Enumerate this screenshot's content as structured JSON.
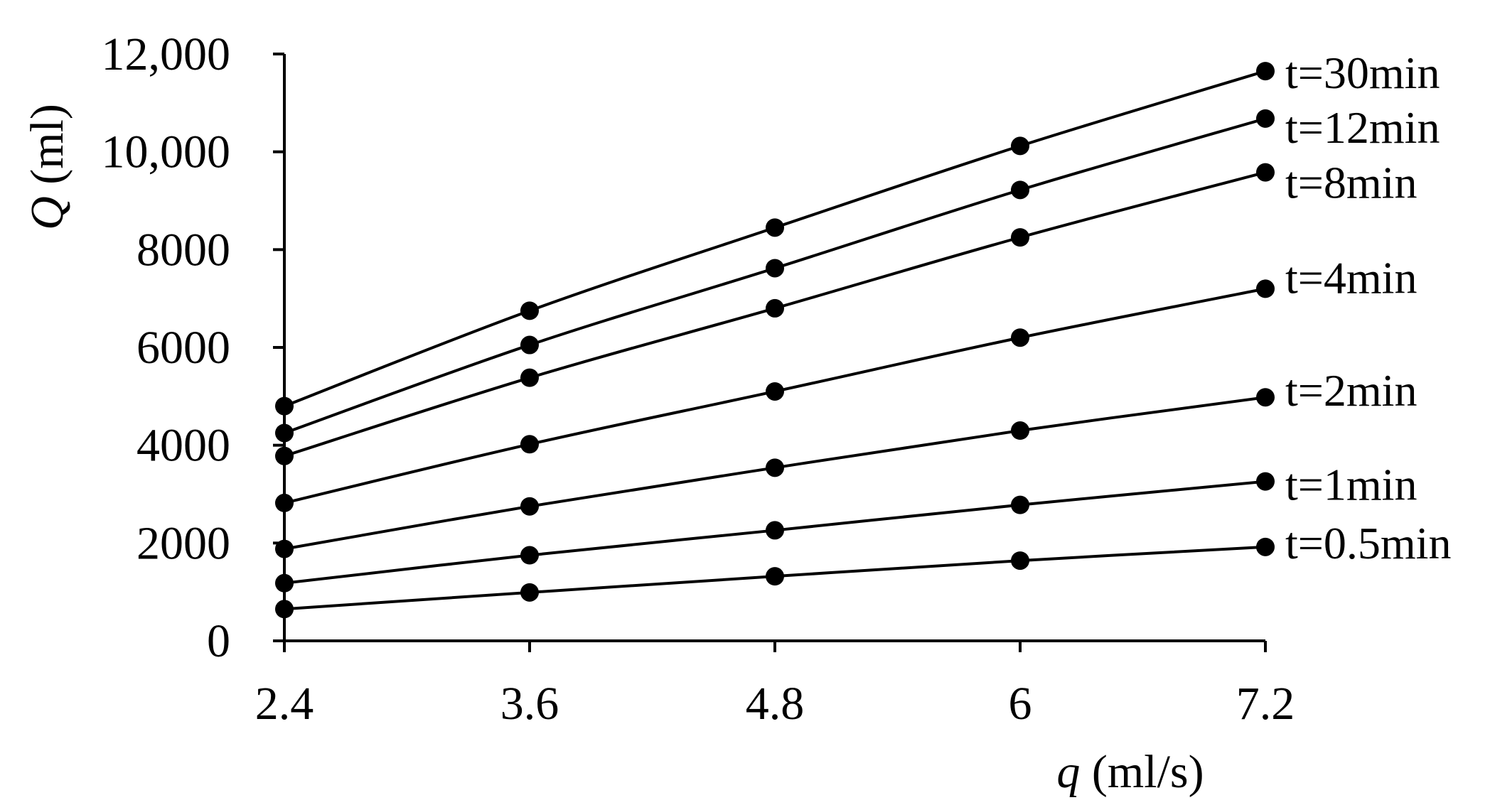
{
  "chart_data": {
    "type": "line",
    "title": "",
    "xlabel": {
      "var": "q",
      "unit": " (ml/s)"
    },
    "ylabel": {
      "var": "Q",
      "unit": " (ml)"
    },
    "x": [
      2.4,
      3.6,
      4.8,
      6,
      7.2
    ],
    "x_tick_labels": [
      "2.4",
      "3.6",
      "4.8",
      "6",
      "7.2"
    ],
    "xlim": [
      2.4,
      7.2
    ],
    "y_ticks": [
      0,
      2000,
      4000,
      6000,
      8000,
      10000,
      12000
    ],
    "y_tick_labels": [
      "0",
      "2000",
      "4000",
      "6000",
      "8000",
      "10,000",
      "12,000"
    ],
    "ylim": [
      0,
      12000
    ],
    "grid": false,
    "legend": "series labels at right end of each line",
    "series": [
      {
        "name": "t=30min",
        "values": [
          4800,
          6750,
          8450,
          10120,
          11650
        ]
      },
      {
        "name": "t=12min",
        "values": [
          4250,
          6050,
          7620,
          9220,
          10680
        ]
      },
      {
        "name": "t=8min",
        "values": [
          3780,
          5380,
          6800,
          8250,
          9580
        ]
      },
      {
        "name": "t=4min",
        "values": [
          2820,
          4020,
          5100,
          6200,
          7200
        ]
      },
      {
        "name": "t=2min",
        "values": [
          1880,
          2750,
          3540,
          4300,
          4980
        ]
      },
      {
        "name": "t=1min",
        "values": [
          1180,
          1750,
          2260,
          2780,
          3260
        ]
      },
      {
        "name": "t=0.5min",
        "values": [
          650,
          990,
          1320,
          1640,
          1920
        ]
      }
    ],
    "colors": {
      "line": "#000000",
      "marker": "#000000",
      "axis": "#000000"
    }
  }
}
